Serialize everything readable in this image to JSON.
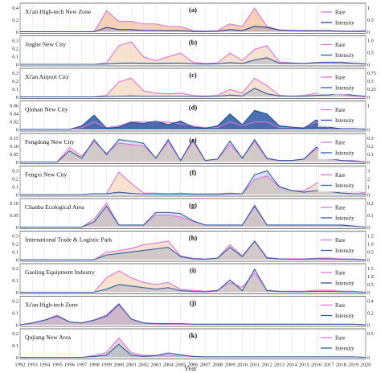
{
  "chart_data": {
    "type": "area",
    "xlabel": "Year",
    "x": [
      1992,
      1993,
      1994,
      1995,
      1996,
      1997,
      1998,
      1999,
      2000,
      2001,
      2002,
      2003,
      2004,
      2005,
      2006,
      2007,
      2008,
      2009,
      2010,
      2011,
      2012,
      2013,
      2014,
      2015,
      2016,
      2017,
      2018,
      2019,
      2020
    ],
    "legend": {
      "rate": "Rate",
      "intensity": "Intensity"
    },
    "colors": {
      "rate": "#e36fdc",
      "intensity": "#2a5ea8",
      "grid": "#d9d9d9",
      "axis": "#555555"
    },
    "panels": [
      {
        "letter": "(a)",
        "title": "Xi'an High-tech New Zone",
        "left_ticks": [
          "0",
          "0.2",
          "0.4"
        ],
        "right_ticks": [
          "0",
          "0.5",
          "1"
        ],
        "fill": "#f3c9aa",
        "rate_line": "#e36fdc",
        "intensity_line": "#1f3f99",
        "ylim": [
          0,
          0.5
        ],
        "ylim_right": [
          0,
          1.2
        ],
        "rate": [
          0,
          0,
          0,
          0,
          0,
          0,
          0,
          0.4,
          0.2,
          0.2,
          0.15,
          0.15,
          0.1,
          0.1,
          0.02,
          0.01,
          0.02,
          0.15,
          0.1,
          0.45,
          0.1,
          0.03,
          0.02,
          0.01,
          0.02,
          0.02,
          0.01,
          0.01,
          0.02
        ],
        "intensity": [
          0,
          0,
          0,
          0,
          0,
          0,
          0,
          0.2,
          0.1,
          0.1,
          0.06,
          0.06,
          0.05,
          0.05,
          0.01,
          0.01,
          0.02,
          0.1,
          0.05,
          0.25,
          0.2,
          0.08,
          0.06,
          0.05,
          0.05,
          0.04,
          0.02,
          0.01,
          0.02
        ]
      },
      {
        "letter": "(b)",
        "title": "Jinghe New City",
        "left_ticks": [
          "0",
          "0.1",
          "0.2",
          "0.3"
        ],
        "right_ticks": [
          "0",
          "0.5",
          "1.0"
        ],
        "fill": "#f6ddc8",
        "rate_line": "#e36fdc",
        "intensity_line": "#2a5ea8",
        "ylim": [
          0,
          0.35
        ],
        "ylim_right": [
          0,
          1.2
        ],
        "rate": [
          0,
          0,
          0,
          0,
          0,
          0,
          0,
          0.02,
          0.25,
          0.3,
          0.1,
          0.05,
          0.1,
          0.15,
          0.03,
          0.01,
          0.02,
          0.15,
          0.05,
          0.2,
          0.25,
          0.03,
          0.02,
          0.01,
          0.02,
          0.02,
          0.01,
          0.01,
          0
        ],
        "intensity": [
          0,
          0,
          0,
          0,
          0,
          0,
          0,
          0.01,
          0.05,
          0.06,
          0.05,
          0.04,
          0.05,
          0.06,
          0.02,
          0.01,
          0.02,
          0.08,
          0.04,
          0.2,
          0.3,
          0.05,
          0.05,
          0.04,
          0.08,
          0.1,
          0.1,
          0.05,
          0.02
        ]
      },
      {
        "letter": "(c)",
        "title": "Xi'an Airport City",
        "left_ticks": [
          "0",
          "0.1",
          "0.2",
          "0.3"
        ],
        "right_ticks": [
          "0",
          "0.25",
          "0.5",
          "0.75"
        ],
        "fill": "#f6ddc8",
        "rate_line": "#e36fdc",
        "intensity_line": "#2a5ea8",
        "ylim": [
          0,
          0.35
        ],
        "ylim_right": [
          0,
          0.85
        ],
        "rate": [
          0,
          0,
          0,
          0,
          0,
          0,
          0,
          0.02,
          0.2,
          0.25,
          0.08,
          0.05,
          0.04,
          0.05,
          0.02,
          0.01,
          0.02,
          0.1,
          0.05,
          0.25,
          0.15,
          0.02,
          0.01,
          0.02,
          0.05,
          0.06,
          0.03,
          0.01,
          0
        ],
        "intensity": [
          0,
          0,
          0,
          0,
          0,
          0,
          0,
          0.01,
          0.02,
          0.03,
          0.02,
          0.02,
          0.02,
          0.02,
          0.01,
          0.01,
          0.02,
          0.06,
          0.03,
          0.28,
          0.1,
          0.03,
          0.02,
          0.02,
          0.05,
          0.06,
          0.12,
          0.05,
          0.02
        ]
      },
      {
        "letter": "(d)",
        "title": "Qinhan New City",
        "left_ticks": [
          "0",
          "0.02",
          "0.04",
          "0.06"
        ],
        "right_ticks": [
          "0",
          "1"
        ],
        "fill": "#f3d6c8",
        "rate_line": "#e36fdc",
        "intensity_line": "#1f4fa0",
        "ylim": [
          0,
          0.07
        ],
        "ylim_right": [
          0,
          2.2
        ],
        "rate": [
          0,
          0,
          0,
          0,
          0,
          0.005,
          0.02,
          0.005,
          0.01,
          0.02,
          0.02,
          0.02,
          0.02,
          0.015,
          0.01,
          0.005,
          0.005,
          0.02,
          0.01,
          0.02,
          0.02,
          0.005,
          0.005,
          0.005,
          0.02,
          0.005,
          0.002,
          0.002,
          0
        ],
        "intensity": [
          0,
          0,
          0,
          0,
          0,
          0.3,
          1.2,
          0.1,
          0.2,
          0.6,
          0.5,
          0.7,
          0.4,
          0.7,
          0.2,
          0.1,
          0.3,
          1.3,
          0.4,
          1.6,
          1.3,
          0.3,
          0.2,
          0.1,
          0.8,
          0.2,
          0.05,
          0.05,
          0.02
        ]
      },
      {
        "letter": "(e)",
        "title": "Fengdong New City",
        "left_ticks": [
          "0",
          "0.05",
          "0.10",
          "0.15"
        ],
        "right_ticks": [
          "0",
          "0.1",
          "0.2",
          "0.3"
        ],
        "fill": "#f6ddc8",
        "rate_line": "#e36fdc",
        "intensity_line": "#2a5ea8",
        "ylim": [
          0,
          0.18
        ],
        "ylim_right": [
          0,
          0.35
        ],
        "rate": [
          0,
          0,
          0,
          0,
          0.1,
          0.04,
          0.14,
          0.06,
          0.13,
          0.12,
          0.11,
          0.03,
          0.14,
          0.01,
          0.14,
          0.01,
          0.02,
          0.12,
          0.03,
          0.14,
          0.02,
          0.01,
          0.01,
          0.02,
          0.09,
          0.02,
          0.01,
          0.01,
          0
        ],
        "intensity": [
          0,
          0,
          0,
          0,
          0.15,
          0.05,
          0.3,
          0.1,
          0.3,
          0.28,
          0.25,
          0.05,
          0.3,
          0.02,
          0.3,
          0.02,
          0.04,
          0.28,
          0.05,
          0.3,
          0.05,
          0.02,
          0.02,
          0.04,
          0.2,
          0.05,
          0.02,
          0.01,
          0
        ]
      },
      {
        "letter": "(f)",
        "title": "Fengxi New City",
        "left_ticks": [
          "0",
          "0.1",
          "0.2",
          "0.3"
        ],
        "right_ticks": [
          "0",
          "1",
          "2",
          "3"
        ],
        "fill": "#f6ddc8",
        "rate_line": "#e36fdc",
        "intensity_line": "#2a5ea8",
        "ylim": [
          0,
          0.35
        ],
        "ylim_right": [
          0,
          3.3
        ],
        "rate": [
          0,
          0,
          0,
          0,
          0,
          0,
          0.01,
          0.01,
          0.3,
          0.15,
          0.02,
          0.02,
          0.01,
          0.02,
          0.01,
          0.01,
          0.01,
          0.02,
          0.01,
          0.2,
          0.25,
          0.1,
          0.05,
          0.05,
          0.15,
          0.2,
          0.1,
          0.05,
          0.02
        ],
        "intensity": [
          0,
          0,
          0,
          0,
          0,
          0,
          0.1,
          0.1,
          0.3,
          0.15,
          0.05,
          0.05,
          0.03,
          0.05,
          0.02,
          0.02,
          0.02,
          0.1,
          0.1,
          2.5,
          3.0,
          1.0,
          0.5,
          0.3,
          0.5,
          0.4,
          0.2,
          0.1,
          0.05
        ]
      },
      {
        "letter": "(g)",
        "title": "Chanba Ecological Area",
        "left_ticks": [
          "0",
          "0.05",
          "0.10"
        ],
        "right_ticks": [
          "0",
          "0.1",
          "0.2"
        ],
        "fill": "#f3d6c8",
        "rate_line": "#e36fdc",
        "intensity_line": "#2a5ea8",
        "ylim": [
          0,
          0.13
        ],
        "ylim_right": [
          0,
          0.25
        ],
        "rate": [
          0,
          0,
          0,
          0,
          0,
          0,
          0.04,
          0.12,
          0.01,
          0.01,
          0.01,
          0.06,
          0.06,
          0.05,
          0.03,
          0.01,
          0.01,
          0.01,
          0.01,
          0.11,
          0.01,
          0.01,
          0.01,
          0.01,
          0.01,
          0.01,
          0.01,
          0.005,
          0
        ],
        "intensity": [
          0,
          0,
          0,
          0,
          0,
          0,
          0.05,
          0.2,
          0.02,
          0.02,
          0.02,
          0.14,
          0.14,
          0.13,
          0.06,
          0.02,
          0.02,
          0.02,
          0.02,
          0.2,
          0.02,
          0.02,
          0.02,
          0.02,
          0.02,
          0.02,
          0.02,
          0.01,
          0
        ]
      },
      {
        "letter": "(h)",
        "title": "International Trade & Logistic Park",
        "left_ticks": [
          "0",
          "0.1",
          "0.2",
          "0.3"
        ],
        "right_ticks": [
          "0",
          "0.5",
          "1.0",
          "1.5"
        ],
        "fill": "#f6ddc8",
        "rate_line": "#e36fdc",
        "intensity_line": "#2a5ea8",
        "ylim": [
          0,
          0.35
        ],
        "ylim_right": [
          0,
          1.7
        ],
        "rate": [
          0,
          0,
          0,
          0,
          0,
          0,
          0,
          0.1,
          0.12,
          0.15,
          0.2,
          0.22,
          0.25,
          0.05,
          0.02,
          0.01,
          0.02,
          0.2,
          0.05,
          0.25,
          0.03,
          0.01,
          0.01,
          0.01,
          0.02,
          0.02,
          0.01,
          0.01,
          0
        ],
        "intensity": [
          0,
          0,
          0,
          0,
          0,
          0,
          0,
          0.3,
          0.4,
          0.5,
          0.6,
          0.7,
          0.8,
          0.2,
          0.05,
          0.02,
          0.1,
          0.8,
          0.2,
          1.2,
          0.1,
          0.05,
          0.03,
          0.03,
          0.05,
          0.05,
          0.03,
          0.02,
          0
        ]
      },
      {
        "letter": "(i)",
        "title": "Gaoling Equipment Industry",
        "left_ticks": [
          "0",
          "0.1",
          "0.2"
        ],
        "right_ticks": [
          "0",
          "0.5",
          "1.0",
          "1.5"
        ],
        "fill": "#f6ddc8",
        "rate_line": "#e36fdc",
        "intensity_line": "#2a5ea8",
        "ylim": [
          0,
          0.27
        ],
        "ylim_right": [
          0,
          1.7
        ],
        "rate": [
          0,
          0,
          0,
          0,
          0,
          0,
          0,
          0.15,
          0.22,
          0.15,
          0.1,
          0.08,
          0.1,
          0.03,
          0.02,
          0.01,
          0.02,
          0.1,
          0.05,
          0.2,
          0.02,
          0.01,
          0.01,
          0.01,
          0.02,
          0.02,
          0.01,
          0.01,
          0
        ],
        "intensity": [
          0,
          0,
          0,
          0,
          0,
          0,
          0,
          0.2,
          0.5,
          0.4,
          0.3,
          0.2,
          0.3,
          0.1,
          0.05,
          0.02,
          0.1,
          0.8,
          0.1,
          1.5,
          0.1,
          0.05,
          0.03,
          0.03,
          0.05,
          0.05,
          0.03,
          0.02,
          0
        ]
      },
      {
        "letter": "(j)",
        "title": "Xi'an High-tech Zone",
        "left_ticks": [
          "0",
          "0.1",
          "0.2"
        ],
        "right_ticks": [
          "0",
          "0.2",
          "0.4"
        ],
        "fill": "#f0c2cc",
        "rate_line": "#e36fdc",
        "intensity_line": "#2a5ea8",
        "ylim": [
          0,
          0.27
        ],
        "ylim_right": [
          0,
          0.45
        ],
        "rate": [
          0,
          0.02,
          0.05,
          0.1,
          0.03,
          0.02,
          0.05,
          0.1,
          0.22,
          0.06,
          0.02,
          0.01,
          0.01,
          0.01,
          0.005,
          0.005,
          0.005,
          0.005,
          0.005,
          0.005,
          0.005,
          0.005,
          0.005,
          0.005,
          0.005,
          0.005,
          0.005,
          0.005,
          0
        ],
        "intensity": [
          0,
          0.03,
          0.08,
          0.15,
          0.05,
          0.03,
          0.08,
          0.15,
          0.35,
          0.1,
          0.03,
          0.02,
          0.02,
          0.02,
          0.01,
          0.01,
          0.01,
          0.01,
          0.01,
          0.01,
          0.01,
          0.01,
          0.01,
          0.01,
          0.01,
          0.01,
          0.01,
          0.01,
          0
        ]
      },
      {
        "letter": "(k)",
        "title": "Qujiang New Area",
        "left_ticks": [
          "0",
          "0.1",
          "0.2"
        ],
        "right_ticks": [
          "0",
          "0.5"
        ],
        "fill": "#ddd0c8",
        "rate_line": "#e36fdc",
        "intensity_line": "#2a5ea8",
        "ylim": [
          0,
          0.27
        ],
        "ylim_right": [
          0,
          0.6
        ],
        "rate": [
          0,
          0,
          0,
          0,
          0,
          0,
          0.02,
          0.05,
          0.2,
          0.05,
          0.02,
          0.02,
          0.02,
          0.02,
          0.01,
          0.005,
          0.005,
          0.005,
          0.005,
          0.005,
          0.005,
          0.005,
          0.005,
          0.005,
          0.005,
          0.005,
          0.005,
          0.005,
          0
        ],
        "intensity": [
          0,
          0,
          0,
          0,
          0,
          0,
          0.02,
          0.05,
          0.3,
          0.05,
          0.02,
          0.04,
          0.1,
          0.06,
          0.02,
          0.01,
          0.01,
          0.01,
          0.01,
          0.01,
          0.01,
          0.01,
          0.01,
          0.01,
          0.01,
          0.01,
          0.01,
          0.01,
          0
        ]
      }
    ]
  }
}
